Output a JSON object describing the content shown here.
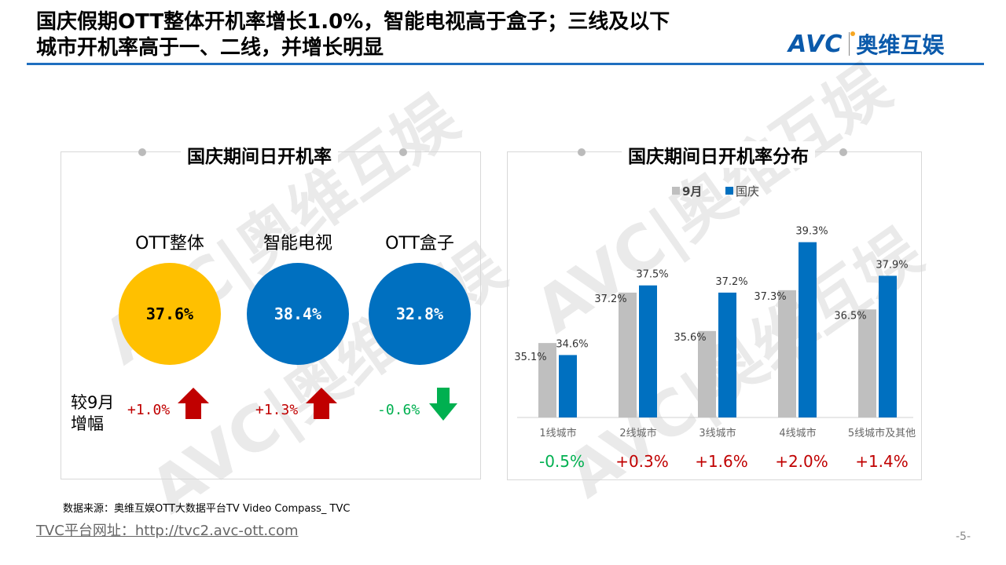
{
  "header": {
    "title_line1": "国庆假期OTT整体开机率增长1.0%，智能电视高于盒子；三线及以下",
    "title_line2": "城市开机率高于一、二线，并增长明显",
    "logo_text": "AVC | 奥维互娱",
    "brand_color": "#0b5aab"
  },
  "left_panel": {
    "title": "国庆期间日开机率",
    "change_label": "较9月\n增幅",
    "change_label_1": "较9月",
    "change_label_2": "增幅",
    "items": [
      {
        "label": "OTT整体",
        "value": "37.6%",
        "change": "+1.0%",
        "direction": "up",
        "color": "#ffc000",
        "text_color": "#000000",
        "change_color": "#c00000"
      },
      {
        "label": "智能电视",
        "value": "38.4%",
        "change": "+1.3%",
        "direction": "up",
        "color": "#0070c0",
        "text_color": "#ffffff",
        "change_color": "#c00000"
      },
      {
        "label": "OTT盒子",
        "value": "32.8%",
        "change": "-0.6%",
        "direction": "down",
        "color": "#0070c0",
        "text_color": "#ffffff",
        "change_color": "#00b050"
      }
    ]
  },
  "chart_data": {
    "type": "bar",
    "title": "国庆期间日开机率分布",
    "categories": [
      "1线城市",
      "2线城市",
      "3线城市",
      "4线城市",
      "5线城市及其他"
    ],
    "series": [
      {
        "name": "9月",
        "values": [
          35.1,
          37.2,
          35.6,
          37.3,
          36.5
        ],
        "labels": [
          "35.1%",
          "37.2%",
          "35.6%",
          "37.3%",
          "36.5%"
        ],
        "color": "#bfbfbf"
      },
      {
        "name": "国庆",
        "values": [
          34.6,
          37.5,
          37.2,
          39.3,
          37.9
        ],
        "labels": [
          "34.6%",
          "37.5%",
          "37.2%",
          "39.3%",
          "37.9%"
        ],
        "color": "#0070c0"
      }
    ],
    "changes": [
      "-0.5%",
      "+0.3%",
      "+1.6%",
      "+2.0%",
      "+1.4%"
    ],
    "change_colors": [
      "#00b050",
      "#c00000",
      "#c00000",
      "#c00000",
      "#c00000"
    ],
    "ylim": [
      32,
      40
    ],
    "legend": "top",
    "grid": false
  },
  "footer": {
    "source": "数据来源：奥维互娱OTT大数据平台TV Video Compass_ TVC",
    "url": "TVC平台网址：http://tvc2.avc-ott.com",
    "page": "-5-"
  }
}
